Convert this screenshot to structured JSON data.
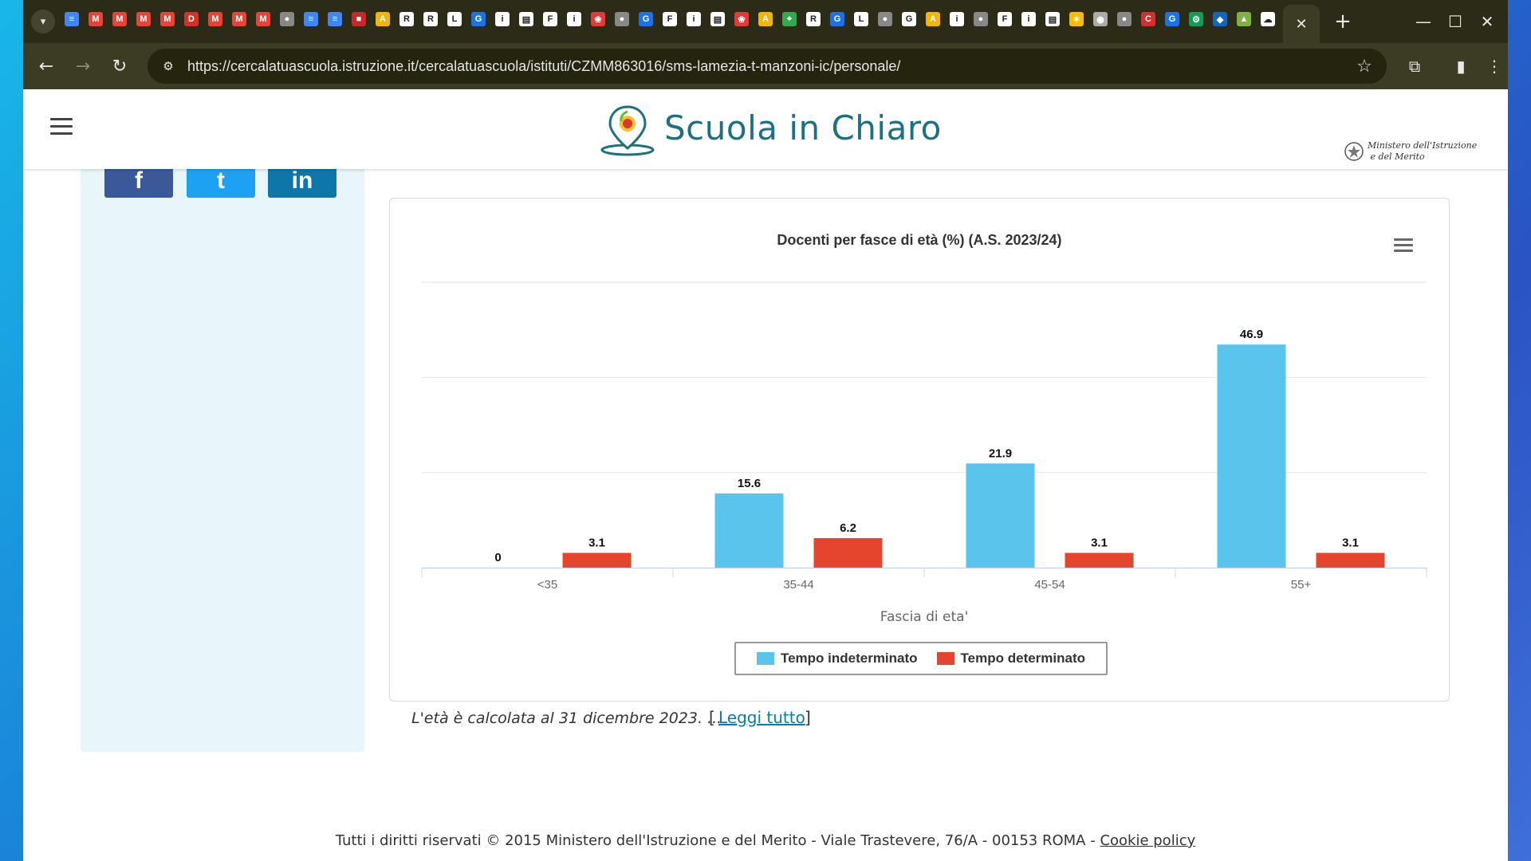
{
  "browser": {
    "url": "https://cercalatuascuola.istruzione.it/cercalatuascuola/istituti/CZMM863016/sms-lamezia-t-manzoni-ic/personale/",
    "active_tab_close": "✕",
    "new_tab": "+",
    "tab_favicons": [
      "docs",
      "gmail",
      "gmail",
      "gmail",
      "gmail",
      "red-d",
      "gmail",
      "gmail",
      "gmail",
      "globe",
      "docs",
      "docs",
      "red-box",
      "yellow-a",
      "R",
      "R",
      "L",
      "G",
      "ilk",
      "doc",
      "F",
      "ilk",
      "red-paws",
      "globe",
      "G",
      "F",
      "ilk",
      "doc",
      "red-paws",
      "yellow-a",
      "map",
      "R",
      "G",
      "L",
      "globe",
      "google",
      "yellow-a",
      "ilk",
      "globe",
      "F",
      "ilk",
      "doc",
      "multi",
      "chrome",
      "globe",
      "red-c",
      "G",
      "gear",
      "shield",
      "chart",
      "cloud",
      "bug"
    ]
  },
  "header": {
    "logo_text": "Scuola in Chiaro",
    "ministry_text": "Ministero dell'Istruzione\n e del Merito"
  },
  "sidebar": {
    "social": [
      "f",
      "t",
      "in"
    ]
  },
  "chart_data": {
    "type": "bar",
    "title": "Docenti per fasce di età (%) (A.S. 2023/24)",
    "xlabel": "Fascia di eta'",
    "ylabel": "",
    "categories": [
      "<35",
      "35-44",
      "45-54",
      "55+"
    ],
    "series": [
      {
        "name": "Tempo indeterminato",
        "color": "#5bc4ec",
        "values": [
          0,
          15.6,
          21.9,
          46.9
        ]
      },
      {
        "name": "Tempo determinato",
        "color": "#e5452c",
        "values": [
          3.1,
          6.2,
          3.1,
          3.1
        ]
      }
    ],
    "ylim": [
      0,
      60
    ],
    "grid": true,
    "legend": "bottom-center"
  },
  "note": {
    "text": "L'età è calcolata al 31 dicembre 2023. ...",
    "open_bracket": "[",
    "link": "Leggi tutto",
    "close_bracket": "]"
  },
  "footer": {
    "text": "Tutti i diritti riservati © 2015 Ministero dell'Istruzione e del Merito - Viale Trastevere, 76/A - 00153 ROMA - ",
    "link": "Cookie policy"
  }
}
